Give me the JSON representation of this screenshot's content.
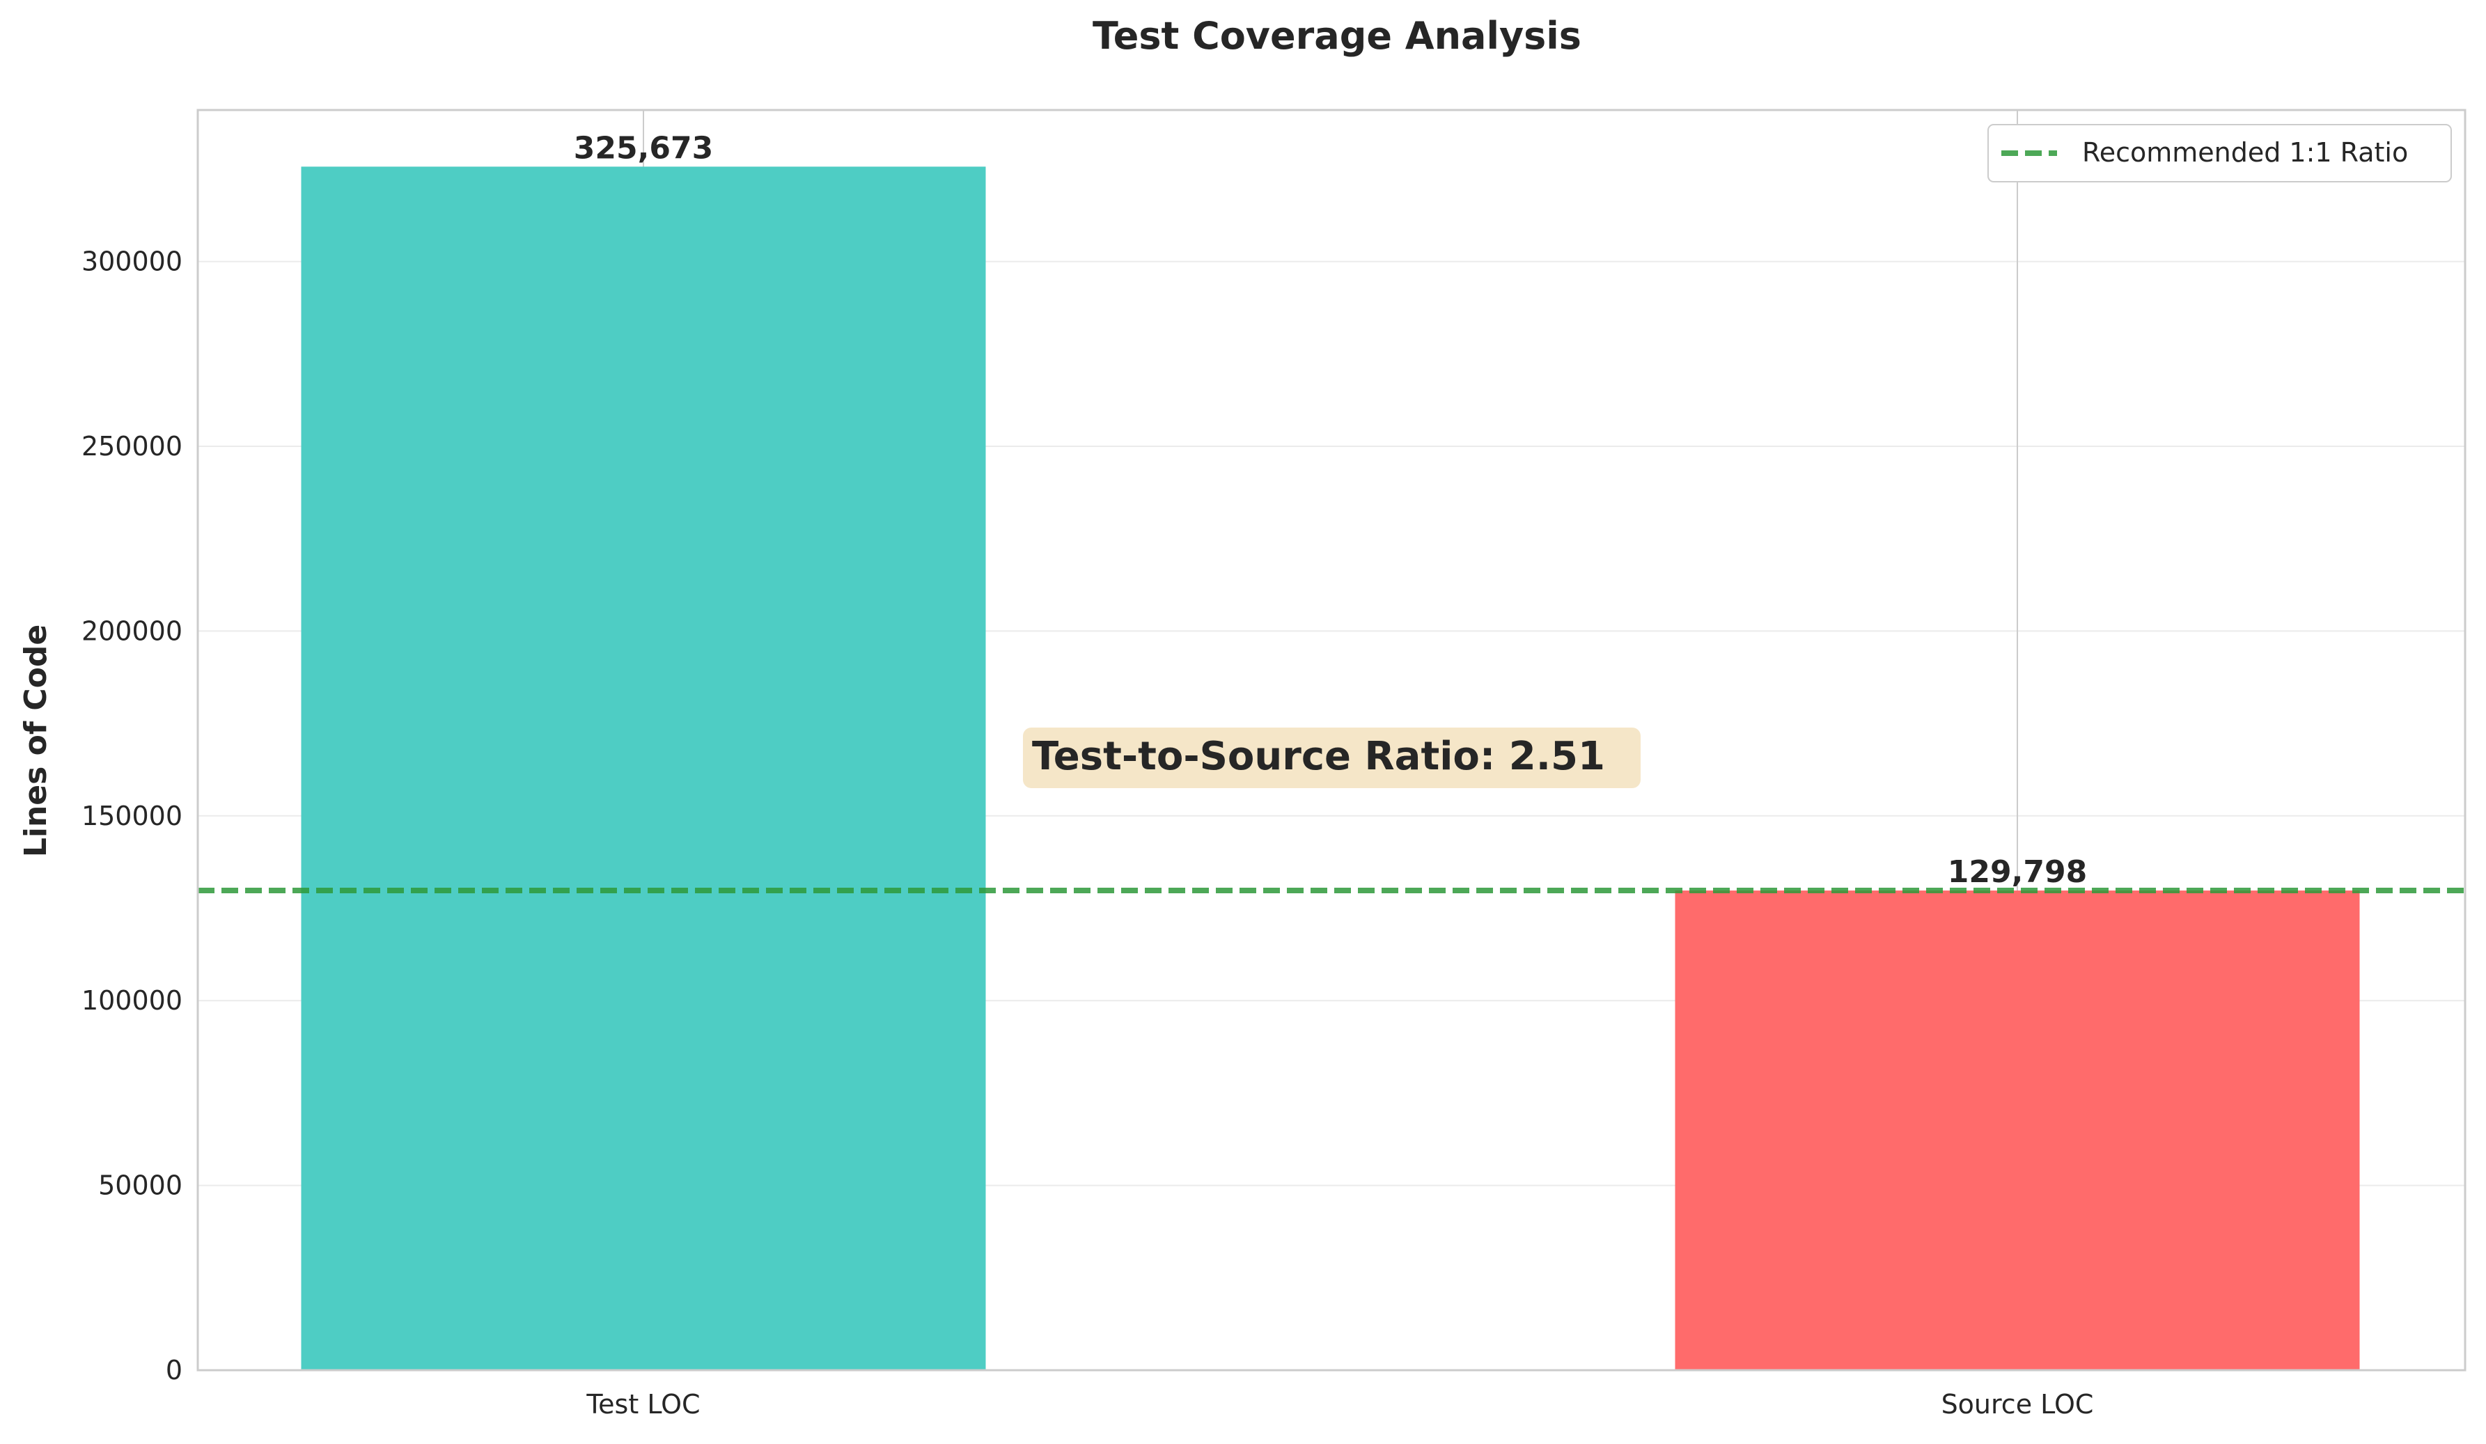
{
  "chart_data": {
    "type": "bar",
    "title": "Test Coverage Analysis",
    "xlabel": "",
    "ylabel": "Lines of Code",
    "categories": [
      "Test LOC",
      "Source LOC"
    ],
    "values": [
      325673,
      129798
    ],
    "value_labels": [
      "325,673",
      "129,798"
    ],
    "colors": [
      "#4ECDC4",
      "#FF6B6B"
    ],
    "ylim": [
      0,
      341000
    ],
    "yticks": [
      0,
      50000,
      100000,
      150000,
      200000,
      250000,
      300000
    ],
    "ytick_labels": [
      "0",
      "50000",
      "100000",
      "150000",
      "200000",
      "250000",
      "300000"
    ],
    "grid": true,
    "reference_line": {
      "value": 129798,
      "label": "Recommended 1:1 Ratio",
      "color": "#2E9A3A",
      "style": "dashed"
    },
    "annotation": {
      "text": "Test-to-Source Ratio: 2.51",
      "y": 165000,
      "background": "#F5E6C8"
    },
    "legend": {
      "placement": "top-right",
      "entries": [
        "Recommended 1:1 Ratio"
      ]
    }
  }
}
